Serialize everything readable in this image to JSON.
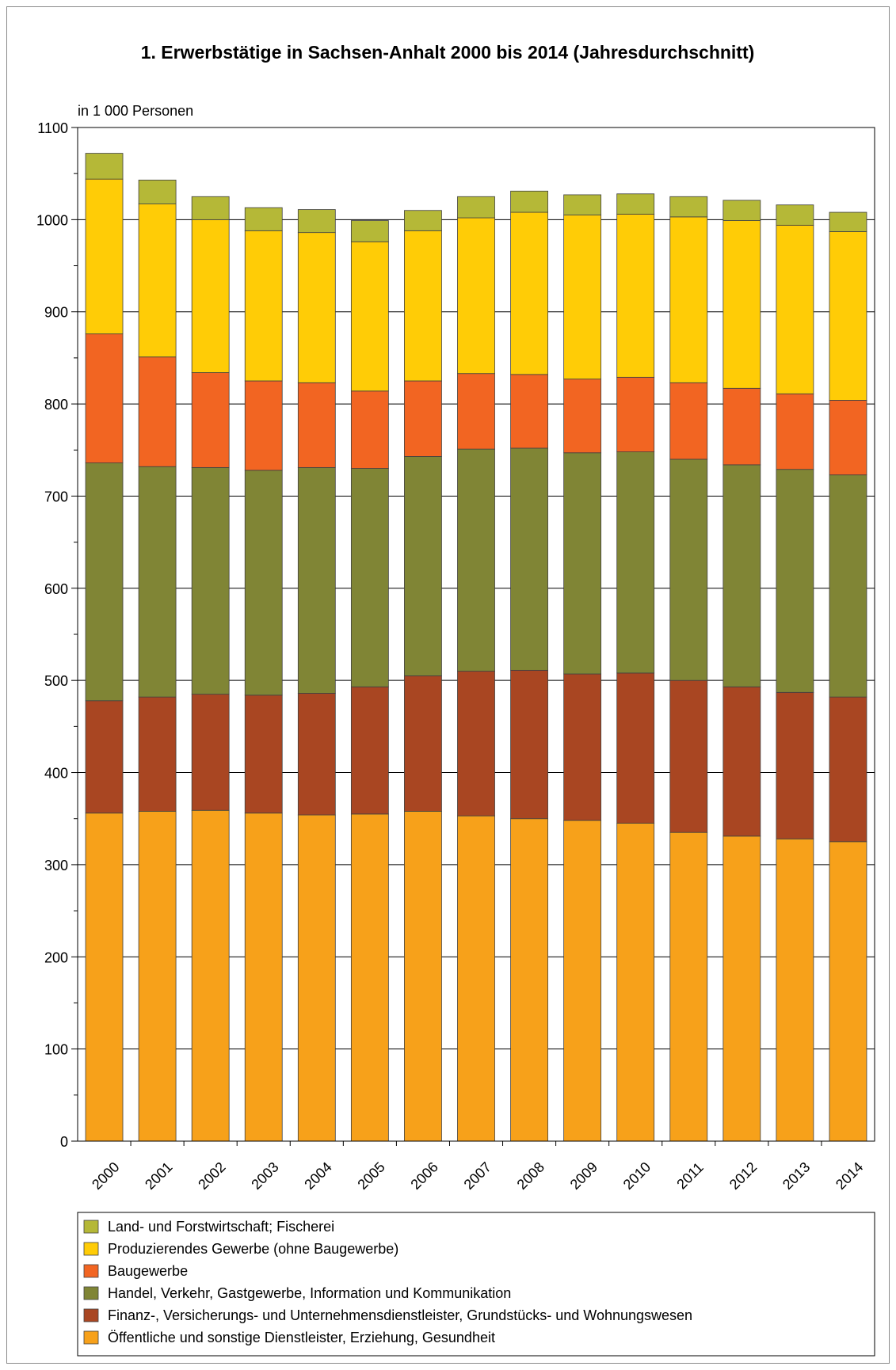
{
  "chart_data": {
    "type": "bar",
    "stacked": true,
    "title": "1. Erwerbstätige in Sachsen-Anhalt 2000 bis 2014 (Jahresdurchschnitt)",
    "ylabel": "in 1 000 Personen",
    "xlabel": "",
    "ylim": [
      0,
      1100
    ],
    "yticks": [
      "0",
      "100",
      "200",
      "300",
      "400",
      "500",
      "600",
      "700",
      "800",
      "900",
      "1000",
      "1100"
    ],
    "grid": true,
    "legend_position": "bottom",
    "categories": [
      "2000",
      "2001",
      "2002",
      "2003",
      "2004",
      "2005",
      "2006",
      "2007",
      "2008",
      "2009",
      "2010",
      "2011",
      "2012",
      "2013",
      "2014"
    ],
    "series": [
      {
        "name": "Öffentliche und sonstige Dienstleister, Erziehung, Gesundheit",
        "color": "#f7a11a",
        "values": [
          356,
          358,
          359,
          356,
          354,
          355,
          358,
          353,
          350,
          348,
          345,
          335,
          331,
          328,
          325
        ]
      },
      {
        "name": "Finanz-, Versicherungs- und Unternehmensdienstleister, Grundstücks- und Wohnungswesen",
        "color": "#a94622",
        "values": [
          122,
          124,
          126,
          128,
          132,
          138,
          147,
          157,
          161,
          159,
          163,
          165,
          162,
          159,
          157
        ]
      },
      {
        "name": "Handel, Verkehr, Gastgewerbe, Information und Kommunikation",
        "color": "#808535",
        "values": [
          258,
          250,
          246,
          244,
          245,
          237,
          238,
          241,
          241,
          240,
          240,
          240,
          241,
          242,
          241
        ]
      },
      {
        "name": "Baugewerbe",
        "color": "#f26522",
        "values": [
          140,
          119,
          103,
          97,
          92,
          84,
          82,
          82,
          80,
          80,
          81,
          83,
          83,
          82,
          81
        ]
      },
      {
        "name": "Produzierendes Gewerbe (ohne Baugewerbe)",
        "color": "#ffcc06",
        "values": [
          168,
          166,
          166,
          163,
          163,
          162,
          163,
          169,
          176,
          178,
          177,
          180,
          182,
          183,
          183
        ]
      },
      {
        "name": "Land- und Forstwirtschaft; Fischerei",
        "color": "#b5b837",
        "values": [
          28,
          26,
          25,
          25,
          25,
          23,
          22,
          23,
          23,
          22,
          22,
          22,
          22,
          22,
          21
        ]
      }
    ]
  }
}
